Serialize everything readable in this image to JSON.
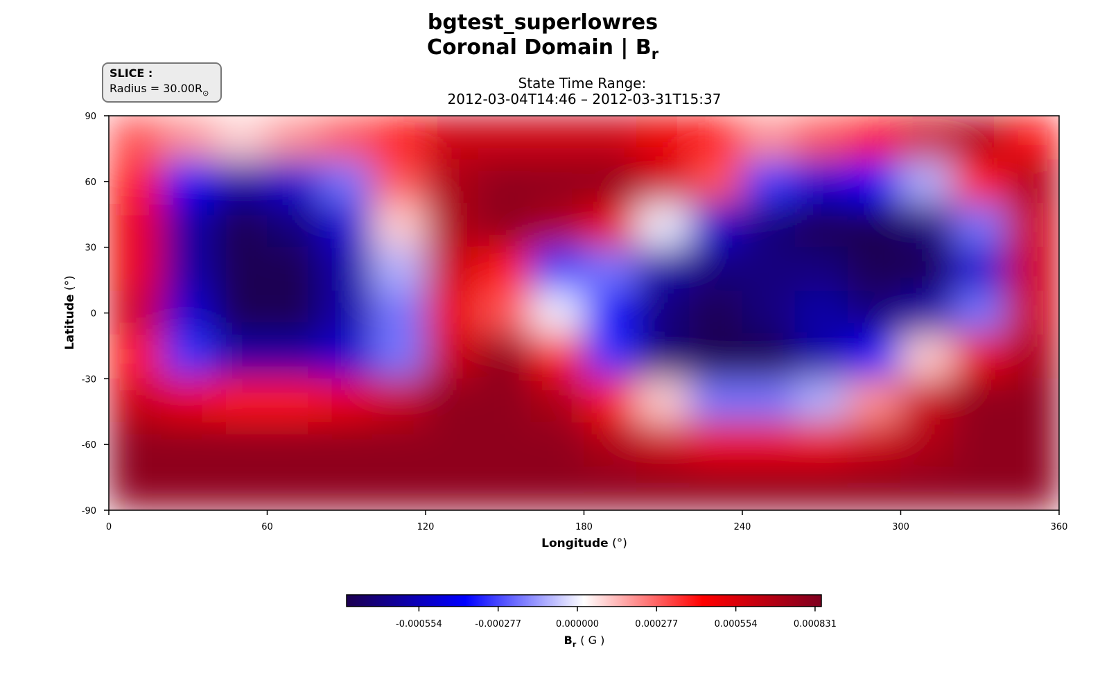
{
  "chart_data": {
    "type": "heatmap",
    "title": "bgtest_superlowres",
    "title_quantity": "Coronal Domain | B",
    "title_subscript": "r",
    "time_label": "State Time Range:",
    "time_range": "2012-03-04T14:46 – 2012-03-31T15:37",
    "slice_label": "SLICE :",
    "slice_value": "Radius = 30.00R",
    "slice_unit": "⊙",
    "xlabel": "Longitude",
    "xlabel_unit": "(°)",
    "ylabel": "Latitude",
    "ylabel_unit": "(°)",
    "xlim": [
      0,
      360
    ],
    "xticks": [
      0,
      60,
      120,
      180,
      240,
      300,
      360
    ],
    "ylim": [
      -90,
      90
    ],
    "yticks": [
      -90,
      -60,
      -30,
      0,
      30,
      60,
      90
    ],
    "x": [
      10,
      30,
      50,
      70,
      90,
      110,
      130,
      150,
      170,
      190,
      210,
      230,
      250,
      270,
      290,
      310,
      330,
      350
    ],
    "y": [
      80,
      60,
      40,
      20,
      0,
      -20,
      -40,
      -60,
      -80
    ],
    "z": [
      [
        0.0003,
        0.0002,
        0.0001,
        0.0002,
        0.0003,
        0.0004,
        0.0006,
        0.0006,
        0.0006,
        0.0006,
        0.0005,
        0.0004,
        0.0002,
        0.0003,
        0.0004,
        0.0006,
        0.0007,
        0.0004
      ],
      [
        0.0004,
        -0.0004,
        -0.0006,
        -0.0005,
        -0.0002,
        0.0003,
        0.0007,
        0.0008,
        0.0008,
        0.0008,
        0.0006,
        0.0003,
        -0.0003,
        -0.0005,
        -0.0004,
        -0.0001,
        0.0004,
        0.0007
      ],
      [
        0.0005,
        -0.0006,
        -0.0008,
        -0.0007,
        -0.0005,
        0.0001,
        0.0007,
        0.0008,
        0.0007,
        0.0005,
        0.0,
        -0.0005,
        -0.0007,
        -0.0008,
        -0.0008,
        -0.0007,
        -0.0002,
        0.0006
      ],
      [
        0.0005,
        -0.0006,
        -0.0008,
        -0.0008,
        -0.0006,
        -0.0001,
        0.0006,
        0.0004,
        -0.0003,
        -0.0002,
        -0.0006,
        -0.0007,
        -0.0007,
        -0.0007,
        -0.0008,
        -0.0008,
        -0.0005,
        0.0006
      ],
      [
        0.0006,
        -0.0005,
        -0.0008,
        -0.0008,
        -0.0006,
        -0.0002,
        0.0005,
        0.0003,
        0.0,
        -0.0004,
        -0.0007,
        -0.0008,
        -0.0007,
        -0.0006,
        -0.0007,
        -0.0006,
        -0.0002,
        0.0006
      ],
      [
        0.0004,
        -0.0003,
        -0.0006,
        -0.0006,
        -0.0005,
        -0.0002,
        0.0006,
        0.0008,
        0.0004,
        -0.0003,
        -0.0007,
        -0.0008,
        -0.0008,
        -0.0006,
        -0.0004,
        0.0001,
        0.0005,
        0.0007
      ],
      [
        0.0006,
        0.0005,
        0.0004,
        0.0004,
        0.0005,
        0.0006,
        0.0008,
        0.0008,
        0.0007,
        0.0004,
        0.0001,
        -0.0002,
        -0.0002,
        -0.0001,
        0.0002,
        0.0006,
        0.0008,
        0.0008
      ],
      [
        0.0008,
        0.0008,
        0.0008,
        0.0008,
        0.0008,
        0.0008,
        0.0008,
        0.0008,
        0.0008,
        0.0007,
        0.0006,
        0.0005,
        0.0005,
        0.0005,
        0.0006,
        0.0007,
        0.0008,
        0.0008
      ],
      [
        0.0008,
        0.0008,
        0.0008,
        0.0008,
        0.0008,
        0.0008,
        0.0008,
        0.0008,
        0.0008,
        0.0008,
        0.0008,
        0.0008,
        0.0008,
        0.0008,
        0.0008,
        0.0008,
        0.0008,
        0.0008
      ]
    ],
    "colorbar": {
      "label": "B",
      "label_subscript": "r",
      "unit": "( G )",
      "clim": [
        -0.000807,
        0.000853
      ],
      "ticks": [
        -0.000554,
        -0.000277,
        {
          "value": 0,
          "label": "0.000000"
        },
        0.000277,
        0.000554,
        0.000831
      ],
      "colormap": [
        "#1c0050",
        "#0000ff",
        "#ffffff",
        "#ff0000",
        "#7f0020"
      ]
    }
  }
}
